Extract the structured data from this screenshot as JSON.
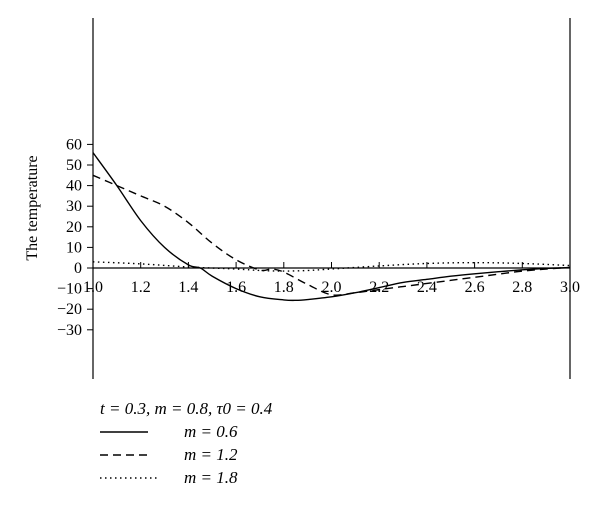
{
  "chart_data": {
    "type": "line",
    "title": "",
    "subtitle": "t = 0.3, m = 0.8, τ0 = 0.4",
    "xlabel": "",
    "ylabel": "The temperature",
    "xlim": [
      1.0,
      3.0
    ],
    "ylim": [
      -30,
      65
    ],
    "x_ticks": [
      "1.0",
      "1.2",
      "1.4",
      "1.6",
      "1.8",
      "2.0",
      "2.2",
      "2.4",
      "2.6",
      "2.8",
      "3.0"
    ],
    "y_ticks": [
      "60",
      "50",
      "40",
      "30",
      "20",
      "10",
      "0",
      "−10",
      "−20",
      "−30"
    ],
    "grid": false,
    "legend_position": "bottom-left",
    "series": [
      {
        "name": "m = 0.6",
        "style": "solid",
        "x": [
          1.0,
          1.1,
          1.2,
          1.3,
          1.4,
          1.45,
          1.5,
          1.6,
          1.7,
          1.8,
          1.85,
          1.9,
          2.0,
          2.1,
          2.2,
          2.3,
          2.4,
          2.5,
          2.6,
          2.7,
          2.8,
          2.9,
          3.0
        ],
        "values": [
          56,
          40,
          23,
          10,
          1.5,
          0,
          -4,
          -10,
          -14,
          -15.5,
          -15.7,
          -15.3,
          -14,
          -12,
          -9.5,
          -7,
          -5.5,
          -4,
          -2.8,
          -1.8,
          -0.9,
          -0.2,
          0.2
        ]
      },
      {
        "name": "m = 1.2",
        "style": "dashed",
        "x": [
          1.0,
          1.1,
          1.2,
          1.3,
          1.4,
          1.5,
          1.6,
          1.7,
          1.75,
          1.8,
          1.9,
          2.0,
          2.1,
          2.2,
          2.3,
          2.4,
          2.5,
          2.6,
          2.7,
          2.8,
          2.9,
          3.0
        ],
        "values": [
          45,
          40,
          35,
          30,
          22,
          12,
          4,
          -1,
          -0.5,
          -2,
          -8,
          -13,
          -12,
          -10.5,
          -9,
          -7.5,
          -6,
          -4.5,
          -3,
          -1.5,
          -0.5,
          0.3
        ]
      },
      {
        "name": "m = 1.8",
        "style": "dotted",
        "x": [
          1.0,
          1.2,
          1.4,
          1.6,
          1.7,
          1.8,
          1.9,
          2.0,
          2.2,
          2.4,
          2.6,
          2.8,
          3.0
        ],
        "values": [
          3,
          2,
          0.5,
          -0.5,
          -1.2,
          -1.5,
          -1.2,
          -0.5,
          1.0,
          2.2,
          2.6,
          2.2,
          1.2
        ]
      }
    ]
  }
}
